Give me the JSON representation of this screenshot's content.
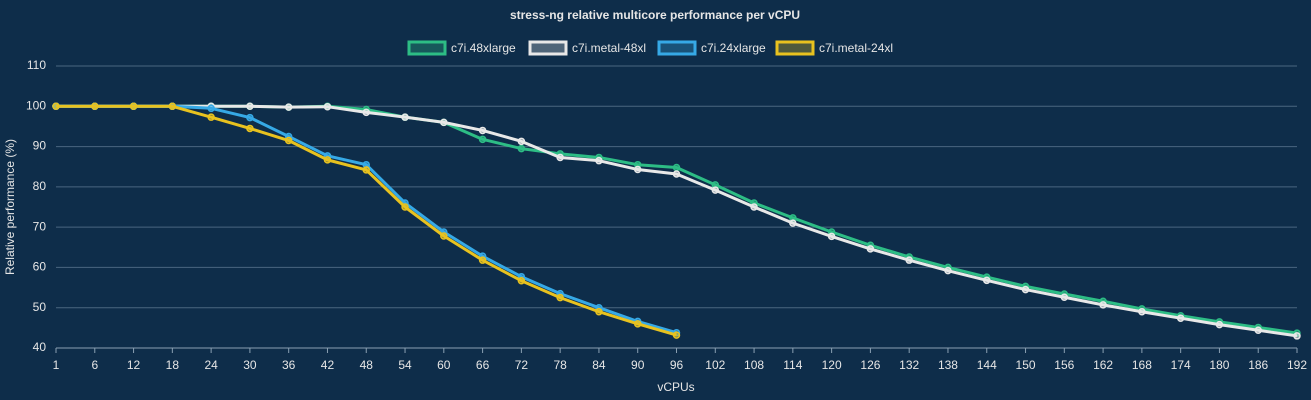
{
  "chart_data": {
    "type": "line",
    "title": "stress-ng relative multicore performance per vCPU",
    "x_label": "vCPUs",
    "y_label": "Relative performance (%)",
    "categories": [
      "1",
      "6",
      "12",
      "18",
      "24",
      "30",
      "36",
      "42",
      "48",
      "54",
      "60",
      "66",
      "72",
      "78",
      "84",
      "90",
      "96",
      "102",
      "108",
      "114",
      "120",
      "126",
      "132",
      "138",
      "144",
      "150",
      "156",
      "162",
      "168",
      "174",
      "180",
      "186",
      "192"
    ],
    "ylim": [
      40,
      110
    ],
    "yticks": [
      40,
      50,
      60,
      70,
      80,
      90,
      100,
      110
    ],
    "grid": true,
    "legend": "top",
    "series": [
      {
        "name": "c7i.48xlarge",
        "color": "#2dbd85",
        "values": [
          100,
          100,
          100,
          100,
          100,
          100,
          99.8,
          100,
          99.2,
          97.3,
          96,
          91.8,
          89.5,
          88.2,
          87.3,
          85.5,
          84.8,
          80.5,
          76,
          72.3,
          68.8,
          65.5,
          62.6,
          60,
          57.6,
          55.3,
          53.4,
          51.6,
          49.7,
          48,
          46.5,
          45.1,
          43.7
        ]
      },
      {
        "name": "c7i.metal-48xl",
        "color": "#e8e8e8",
        "values": [
          100,
          100,
          100,
          100,
          100,
          100,
          99.8,
          99.9,
          98.5,
          97.3,
          96,
          94,
          91.3,
          87.3,
          86.5,
          84.3,
          83.2,
          79.2,
          75,
          71,
          67.7,
          64.6,
          61.8,
          59.2,
          56.8,
          54.5,
          52.6,
          50.7,
          49,
          47.4,
          45.8,
          44.4,
          43
        ]
      },
      {
        "name": "c7i.24xlarge",
        "color": "#36a9e6",
        "values": [
          100,
          100,
          100,
          100,
          99.5,
          97.2,
          92.5,
          87.7,
          85.5,
          76,
          68.8,
          62.8,
          57.7,
          53.5,
          50,
          46.6,
          43.8,
          null,
          null,
          null,
          null,
          null,
          null,
          null,
          null,
          null,
          null,
          null,
          null,
          null,
          null,
          null,
          null
        ]
      },
      {
        "name": "c7i.metal-24xl",
        "color": "#e8c21f",
        "values": [
          100,
          100,
          100,
          100,
          97.3,
          94.5,
          91.5,
          86.7,
          84.2,
          75,
          67.8,
          61.8,
          56.7,
          52.5,
          49,
          46,
          43.2,
          null,
          null,
          null,
          null,
          null,
          null,
          null,
          null,
          null,
          null,
          null,
          null,
          null,
          null,
          null,
          null
        ]
      }
    ]
  }
}
